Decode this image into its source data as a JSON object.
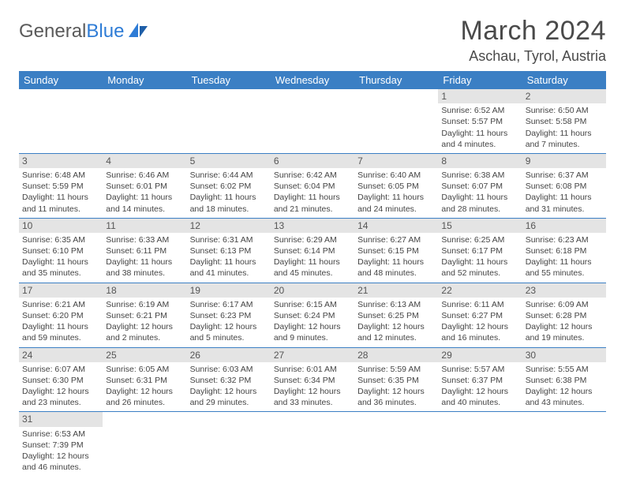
{
  "logo": {
    "text1": "General",
    "text2": "Blue"
  },
  "title": "March 2024",
  "location": "Aschau, Tyrol, Austria",
  "colors": {
    "header_bg": "#3b7fc4",
    "header_fg": "#ffffff",
    "daynum_bg": "#e4e4e4",
    "row_border": "#3b7fc4",
    "logo_blue": "#2e7cd6",
    "text": "#444444"
  },
  "weekdays": [
    "Sunday",
    "Monday",
    "Tuesday",
    "Wednesday",
    "Thursday",
    "Friday",
    "Saturday"
  ],
  "weeks": [
    [
      null,
      null,
      null,
      null,
      null,
      {
        "d": "1",
        "sr": "Sunrise: 6:52 AM",
        "ss": "Sunset: 5:57 PM",
        "dl": "Daylight: 11 hours and 4 minutes."
      },
      {
        "d": "2",
        "sr": "Sunrise: 6:50 AM",
        "ss": "Sunset: 5:58 PM",
        "dl": "Daylight: 11 hours and 7 minutes."
      }
    ],
    [
      {
        "d": "3",
        "sr": "Sunrise: 6:48 AM",
        "ss": "Sunset: 5:59 PM",
        "dl": "Daylight: 11 hours and 11 minutes."
      },
      {
        "d": "4",
        "sr": "Sunrise: 6:46 AM",
        "ss": "Sunset: 6:01 PM",
        "dl": "Daylight: 11 hours and 14 minutes."
      },
      {
        "d": "5",
        "sr": "Sunrise: 6:44 AM",
        "ss": "Sunset: 6:02 PM",
        "dl": "Daylight: 11 hours and 18 minutes."
      },
      {
        "d": "6",
        "sr": "Sunrise: 6:42 AM",
        "ss": "Sunset: 6:04 PM",
        "dl": "Daylight: 11 hours and 21 minutes."
      },
      {
        "d": "7",
        "sr": "Sunrise: 6:40 AM",
        "ss": "Sunset: 6:05 PM",
        "dl": "Daylight: 11 hours and 24 minutes."
      },
      {
        "d": "8",
        "sr": "Sunrise: 6:38 AM",
        "ss": "Sunset: 6:07 PM",
        "dl": "Daylight: 11 hours and 28 minutes."
      },
      {
        "d": "9",
        "sr": "Sunrise: 6:37 AM",
        "ss": "Sunset: 6:08 PM",
        "dl": "Daylight: 11 hours and 31 minutes."
      }
    ],
    [
      {
        "d": "10",
        "sr": "Sunrise: 6:35 AM",
        "ss": "Sunset: 6:10 PM",
        "dl": "Daylight: 11 hours and 35 minutes."
      },
      {
        "d": "11",
        "sr": "Sunrise: 6:33 AM",
        "ss": "Sunset: 6:11 PM",
        "dl": "Daylight: 11 hours and 38 minutes."
      },
      {
        "d": "12",
        "sr": "Sunrise: 6:31 AM",
        "ss": "Sunset: 6:13 PM",
        "dl": "Daylight: 11 hours and 41 minutes."
      },
      {
        "d": "13",
        "sr": "Sunrise: 6:29 AM",
        "ss": "Sunset: 6:14 PM",
        "dl": "Daylight: 11 hours and 45 minutes."
      },
      {
        "d": "14",
        "sr": "Sunrise: 6:27 AM",
        "ss": "Sunset: 6:15 PM",
        "dl": "Daylight: 11 hours and 48 minutes."
      },
      {
        "d": "15",
        "sr": "Sunrise: 6:25 AM",
        "ss": "Sunset: 6:17 PM",
        "dl": "Daylight: 11 hours and 52 minutes."
      },
      {
        "d": "16",
        "sr": "Sunrise: 6:23 AM",
        "ss": "Sunset: 6:18 PM",
        "dl": "Daylight: 11 hours and 55 minutes."
      }
    ],
    [
      {
        "d": "17",
        "sr": "Sunrise: 6:21 AM",
        "ss": "Sunset: 6:20 PM",
        "dl": "Daylight: 11 hours and 59 minutes."
      },
      {
        "d": "18",
        "sr": "Sunrise: 6:19 AM",
        "ss": "Sunset: 6:21 PM",
        "dl": "Daylight: 12 hours and 2 minutes."
      },
      {
        "d": "19",
        "sr": "Sunrise: 6:17 AM",
        "ss": "Sunset: 6:23 PM",
        "dl": "Daylight: 12 hours and 5 minutes."
      },
      {
        "d": "20",
        "sr": "Sunrise: 6:15 AM",
        "ss": "Sunset: 6:24 PM",
        "dl": "Daylight: 12 hours and 9 minutes."
      },
      {
        "d": "21",
        "sr": "Sunrise: 6:13 AM",
        "ss": "Sunset: 6:25 PM",
        "dl": "Daylight: 12 hours and 12 minutes."
      },
      {
        "d": "22",
        "sr": "Sunrise: 6:11 AM",
        "ss": "Sunset: 6:27 PM",
        "dl": "Daylight: 12 hours and 16 minutes."
      },
      {
        "d": "23",
        "sr": "Sunrise: 6:09 AM",
        "ss": "Sunset: 6:28 PM",
        "dl": "Daylight: 12 hours and 19 minutes."
      }
    ],
    [
      {
        "d": "24",
        "sr": "Sunrise: 6:07 AM",
        "ss": "Sunset: 6:30 PM",
        "dl": "Daylight: 12 hours and 23 minutes."
      },
      {
        "d": "25",
        "sr": "Sunrise: 6:05 AM",
        "ss": "Sunset: 6:31 PM",
        "dl": "Daylight: 12 hours and 26 minutes."
      },
      {
        "d": "26",
        "sr": "Sunrise: 6:03 AM",
        "ss": "Sunset: 6:32 PM",
        "dl": "Daylight: 12 hours and 29 minutes."
      },
      {
        "d": "27",
        "sr": "Sunrise: 6:01 AM",
        "ss": "Sunset: 6:34 PM",
        "dl": "Daylight: 12 hours and 33 minutes."
      },
      {
        "d": "28",
        "sr": "Sunrise: 5:59 AM",
        "ss": "Sunset: 6:35 PM",
        "dl": "Daylight: 12 hours and 36 minutes."
      },
      {
        "d": "29",
        "sr": "Sunrise: 5:57 AM",
        "ss": "Sunset: 6:37 PM",
        "dl": "Daylight: 12 hours and 40 minutes."
      },
      {
        "d": "30",
        "sr": "Sunrise: 5:55 AM",
        "ss": "Sunset: 6:38 PM",
        "dl": "Daylight: 12 hours and 43 minutes."
      }
    ],
    [
      {
        "d": "31",
        "sr": "Sunrise: 6:53 AM",
        "ss": "Sunset: 7:39 PM",
        "dl": "Daylight: 12 hours and 46 minutes."
      },
      null,
      null,
      null,
      null,
      null,
      null
    ]
  ]
}
